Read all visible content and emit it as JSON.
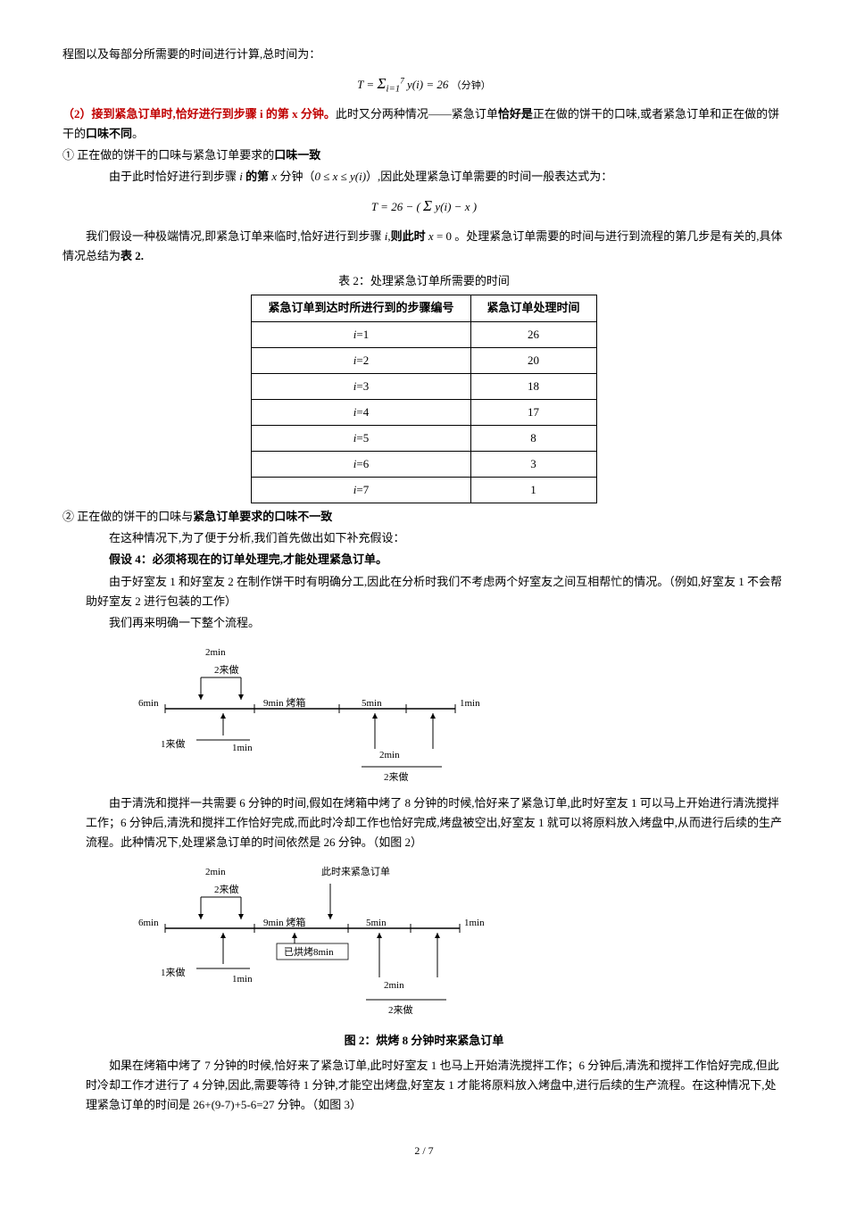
{
  "top_line": "程图以及每部分所需要的时间进行计算,总时间为：",
  "formula1": "T = Σ y(i) = 26",
  "formula1_sub": "i=1",
  "formula1_sup": "7",
  "formula1_unit": "（分钟）",
  "section2_title": "（2）接到紧急订单时,恰好进行到步骤 i 的第 x 分钟。",
  "section2_text": "此时又分两种情况——紧急订单",
  "section2_bold1": "恰好是",
  "section2_text2": "正在做的饼干的口味,或者紧急订单和正在做的饼干的",
  "section2_bold2": "口味不同",
  "section2_text3": "。",
  "case1_title": "① 正在做的饼干的口味与紧急订单要求的",
  "case1_bold": "口味一致",
  "case1_line1a": "由于此时恰好进行到步骤 ",
  "case1_line1b": "i 的第 ",
  "case1_line1c": "x 分钟（",
  "case1_range": "0 ≤ x ≤ y(i)",
  "case1_line1d": "）,因此处理紧急订单需要的时间一般表达式为：",
  "formula2": "T = 26 − ( Σ y(i) − x )",
  "case1_line2a": "我们假设一种极端情况,即紧急订单来临时,恰好进行到步骤 ",
  "case1_line2b": "i,则此时 ",
  "case1_line2c": "x = 0",
  "case1_line2d": " 。处理紧急订单需要的时间与进行到流程的第几步是有关的,具体情况总结为",
  "case1_line2e": "表 2.",
  "table_caption": "表 2：处理紧急订单所需要的时间",
  "table": {
    "headers": [
      "紧急订单到达时所进行到的步骤编号",
      "紧急订单处理时间"
    ],
    "rows": [
      [
        "i=1",
        "26"
      ],
      [
        "i=2",
        "20"
      ],
      [
        "i=3",
        "18"
      ],
      [
        "i=4",
        "17"
      ],
      [
        "i=5",
        "8"
      ],
      [
        "i=6",
        "3"
      ],
      [
        "i=7",
        "1"
      ]
    ]
  },
  "case2_title": "② 正在做的饼干的口味与",
  "case2_bold": "紧急订单要求的口味不一致",
  "case2_line1": "在这种情况下,为了便于分析,我们首先做出如下补充假设：",
  "assumption4": "假设 4：必须将现在的订单处理完,才能处理紧急订单。",
  "case2_line2": "由于好室友 1 和好室友 2 在制作饼干时有明确分工,因此在分析时我们不考虑两个好室友之间互相帮忙的情况。（例如,好室友 1 不会帮助好室友 2 进行包装的工作）",
  "case2_line3": "我们再来明确一下整个流程。",
  "fig1": {
    "labels": {
      "t2min": "2min",
      "t2do": "2来做",
      "t6min": "6min",
      "t9min": "9min 烤箱",
      "t5min": "5min",
      "t1min": "1min",
      "t1do": "1来做"
    }
  },
  "para_after_fig1a": "由于清洗和搅拌一共需要 6 分钟的时间,假如在烤箱中烤了 8 分钟的时候,恰好来了紧急订单,此时好室友 1 可以马上开始进行清洗搅拌工作；6 分钟后,清洗和搅拌工作恰好完成,而此时冷却工作也恰好完成,烤盘被空出,好室友 1 就可以将原料放入烤盘中,从而进行后续的生产流程。此种情况下,处理紧急订单的时间依然是 26 分钟。（如图 2）",
  "fig2": {
    "labels": {
      "t2min": "2min",
      "urgent": "此时来紧急订单",
      "t2do": "2来做",
      "t6min": "6min",
      "t9min": "9min 烤箱",
      "baked8": "已烘烤8min",
      "t5min": "5min",
      "t1min": "1min",
      "t1do": "1来做"
    }
  },
  "fig2_caption": "图 2：烘烤 8 分钟时来紧急订单",
  "para_after_fig2": "如果在烤箱中烤了 7 分钟的时候,恰好来了紧急订单,此时好室友 1 也马上开始清洗搅拌工作；6 分钟后,清洗和搅拌工作恰好完成,但此时冷却工作才进行了 4 分钟,因此,需要等待 1 分钟,才能空出烤盘,好室友 1 才能将原料放入烤盘中,进行后续的生产流程。在这种情况下,处理紧急订单的时间是 26+(9-7)+5-6=27 分钟。（如图 3）",
  "page_num": "2 / 7"
}
